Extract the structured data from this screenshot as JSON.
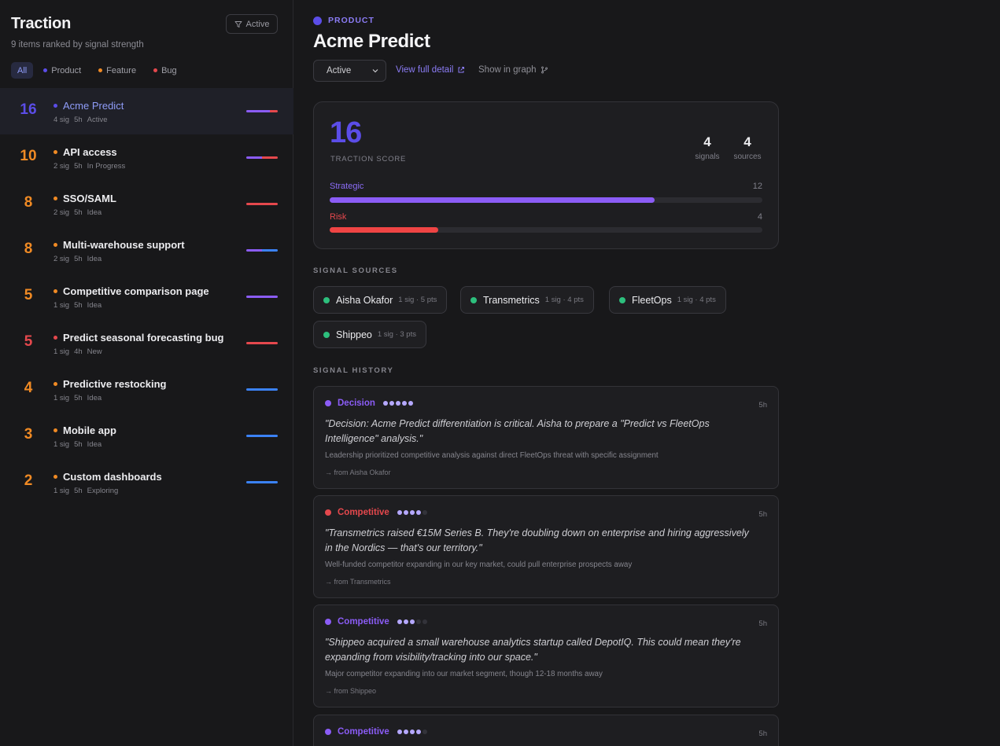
{
  "sidebar": {
    "title": "Traction",
    "subtitle": "9 items ranked by signal strength",
    "active_button": "Active",
    "filters": [
      {
        "label": "All",
        "color": ""
      },
      {
        "label": "Product",
        "color": "#5b4de8"
      },
      {
        "label": "Feature",
        "color": "#f08a24"
      },
      {
        "label": "Bug",
        "color": "#e5484d"
      }
    ],
    "items": [
      {
        "score": "16",
        "name": "Acme Predict",
        "sig": "4 sig",
        "age": "5h",
        "status": "Active",
        "type_color": "#5b4de8",
        "score_color": "#5b4de8",
        "selected": true,
        "bar": [
          "#8b5cf6",
          "#e5484d"
        ],
        "bar_split": 0.75
      },
      {
        "score": "10",
        "name": "API access",
        "sig": "2 sig",
        "age": "5h",
        "status": "In Progress",
        "type_color": "#f08a24",
        "score_color": "#f08a24",
        "bar": [
          "#8b5cf6",
          "#e5484d"
        ],
        "bar_split": 0.5
      },
      {
        "score": "8",
        "name": "SSO/SAML",
        "sig": "2 sig",
        "age": "5h",
        "status": "Idea",
        "type_color": "#f08a24",
        "score_color": "#f08a24",
        "bar": [
          "#e5484d",
          "#e5484d"
        ],
        "bar_split": 1
      },
      {
        "score": "8",
        "name": "Multi-warehouse support",
        "sig": "2 sig",
        "age": "5h",
        "status": "Idea",
        "type_color": "#f08a24",
        "score_color": "#f08a24",
        "bar": [
          "#8b5cf6",
          "#3b82f6"
        ],
        "bar_split": 0.5
      },
      {
        "score": "5",
        "name": "Competitive comparison page",
        "sig": "1 sig",
        "age": "5h",
        "status": "Idea",
        "type_color": "#f08a24",
        "score_color": "#f08a24",
        "bar": [
          "#8b5cf6",
          "#8b5cf6"
        ],
        "bar_split": 1
      },
      {
        "score": "5",
        "name": "Predict seasonal forecasting bug",
        "sig": "1 sig",
        "age": "4h",
        "status": "New",
        "type_color": "#e5484d",
        "score_color": "#e5484d",
        "bar": [
          "#e5484d",
          "#e5484d"
        ],
        "bar_split": 1
      },
      {
        "score": "4",
        "name": "Predictive restocking",
        "sig": "1 sig",
        "age": "5h",
        "status": "Idea",
        "type_color": "#f08a24",
        "score_color": "#f08a24",
        "bar": [
          "#3b82f6",
          "#3b82f6"
        ],
        "bar_split": 1
      },
      {
        "score": "3",
        "name": "Mobile app",
        "sig": "1 sig",
        "age": "5h",
        "status": "Idea",
        "type_color": "#f08a24",
        "score_color": "#f08a24",
        "bar": [
          "#3b82f6",
          "#3b82f6"
        ],
        "bar_split": 1
      },
      {
        "score": "2",
        "name": "Custom dashboards",
        "sig": "1 sig",
        "age": "5h",
        "status": "Exploring",
        "type_color": "#f08a24",
        "score_color": "#f08a24",
        "bar": [
          "#3b82f6",
          "#3b82f6"
        ],
        "bar_split": 1
      }
    ]
  },
  "main": {
    "kind": "PRODUCT",
    "title": "Acme Predict",
    "status": "Active",
    "view_detail": "View full detail",
    "show_graph": "Show in graph",
    "score": {
      "value": "16",
      "label": "TRACTION SCORE",
      "signals": "4",
      "signals_label": "signals",
      "sources": "4",
      "sources_label": "sources",
      "strategic_label": "Strategic",
      "strategic_value": "12",
      "strategic_fraction": 0.75,
      "risk_label": "Risk",
      "risk_value": "4",
      "risk_fraction": 0.25
    },
    "sources_title": "SIGNAL SOURCES",
    "sources": [
      {
        "name": "Aisha Okafor",
        "meta": "1 sig · 5 pts"
      },
      {
        "name": "Transmetrics",
        "meta": "1 sig · 4 pts"
      },
      {
        "name": "FleetOps",
        "meta": "1 sig · 4 pts"
      },
      {
        "name": "Shippeo",
        "meta": "1 sig · 3 pts"
      }
    ],
    "history_title": "SIGNAL HISTORY",
    "history": [
      {
        "type": "Decision",
        "color": "#8b5cf6",
        "strength": 5,
        "time": "5h",
        "quote": "\"Decision: Acme Predict differentiation is critical. Aisha to prepare a \"Predict vs FleetOps Intelligence\" analysis.\"",
        "desc": "Leadership prioritized competitive analysis against direct FleetOps threat with specific assignment",
        "from": "from Aisha Okafor"
      },
      {
        "type": "Competitive",
        "color": "#e5484d",
        "strength": 4,
        "time": "5h",
        "quote": "\"Transmetrics raised €15M Series B. They're doubling down on enterprise and hiring aggressively in the Nordics — that's our territory.\"",
        "desc": "Well-funded competitor expanding in our key market, could pull enterprise prospects away",
        "from": "from Transmetrics"
      },
      {
        "type": "Competitive",
        "color": "#8b5cf6",
        "strength": 3,
        "time": "5h",
        "quote": "\"Shippeo acquired a small warehouse analytics startup called DepotIQ. This could mean they're expanding from visibility/tracking into our space.\"",
        "desc": "Major competitor expanding into our market segment, though 12-18 months away",
        "from": "from Shippeo"
      },
      {
        "type": "Competitive",
        "color": "#8b5cf6",
        "strength": 4,
        "time": "5h",
        "quote": "",
        "desc": "",
        "from": ""
      }
    ]
  }
}
